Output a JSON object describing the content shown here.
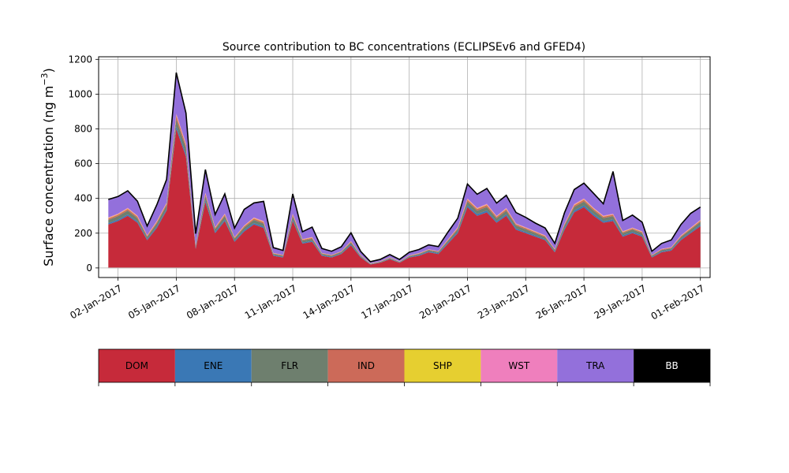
{
  "chart_data": {
    "type": "area",
    "stacked": true,
    "title": "Source contribution to BC concentrations (ECLIPSEv6 and GFED4)",
    "ylabel": "Surface concentration (ng m",
    "ylabel_exponent": "−3",
    "ylabel_suffix": ")",
    "xlabel": "",
    "ylim": [
      -55,
      1215
    ],
    "xlim": [
      "2017-01-01T00:00",
      "2017-02-01T12:00"
    ],
    "yticks": [
      0,
      200,
      400,
      600,
      800,
      1000,
      1200
    ],
    "xticks": [
      "02-Jan-2017",
      "05-Jan-2017",
      "08-Jan-2017",
      "11-Jan-2017",
      "14-Jan-2017",
      "17-Jan-2017",
      "20-Jan-2017",
      "23-Jan-2017",
      "26-Jan-2017",
      "29-Jan-2017",
      "01-Feb-2017"
    ],
    "xtick_dates": [
      "2017-01-02",
      "2017-01-05",
      "2017-01-08",
      "2017-01-11",
      "2017-01-14",
      "2017-01-17",
      "2017-01-20",
      "2017-01-23",
      "2017-01-26",
      "2017-01-29",
      "2017-02-01"
    ],
    "grid": true,
    "legend_position": "below",
    "x": [
      "2017-01-01T12:00",
      "2017-01-02T00:00",
      "2017-01-02T12:00",
      "2017-01-03T00:00",
      "2017-01-03T12:00",
      "2017-01-04T00:00",
      "2017-01-04T12:00",
      "2017-01-05T00:00",
      "2017-01-05T12:00",
      "2017-01-06T00:00",
      "2017-01-06T12:00",
      "2017-01-07T00:00",
      "2017-01-07T12:00",
      "2017-01-08T00:00",
      "2017-01-08T12:00",
      "2017-01-09T00:00",
      "2017-01-09T12:00",
      "2017-01-10T00:00",
      "2017-01-10T12:00",
      "2017-01-11T00:00",
      "2017-01-11T12:00",
      "2017-01-12T00:00",
      "2017-01-12T12:00",
      "2017-01-13T00:00",
      "2017-01-13T12:00",
      "2017-01-14T00:00",
      "2017-01-14T12:00",
      "2017-01-15T00:00",
      "2017-01-15T12:00",
      "2017-01-16T00:00",
      "2017-01-16T12:00",
      "2017-01-17T00:00",
      "2017-01-17T12:00",
      "2017-01-18T00:00",
      "2017-01-18T12:00",
      "2017-01-19T00:00",
      "2017-01-19T12:00",
      "2017-01-20T00:00",
      "2017-01-20T12:00",
      "2017-01-21T00:00",
      "2017-01-21T12:00",
      "2017-01-22T00:00",
      "2017-01-22T12:00",
      "2017-01-23T00:00",
      "2017-01-23T12:00",
      "2017-01-24T00:00",
      "2017-01-24T12:00",
      "2017-01-25T00:00",
      "2017-01-25T12:00",
      "2017-01-26T00:00",
      "2017-01-26T12:00",
      "2017-01-27T00:00",
      "2017-01-27T12:00",
      "2017-01-28T00:00",
      "2017-01-28T12:00",
      "2017-01-29T00:00",
      "2017-01-29T12:00",
      "2017-01-30T00:00",
      "2017-01-30T12:00",
      "2017-01-31T00:00",
      "2017-01-31T12:00",
      "2017-02-01T00:00"
    ],
    "series": [
      {
        "name": "DOM",
        "color": "#c62a3a",
        "values": [
          250,
          270,
          300,
          260,
          160,
          230,
          330,
          800,
          640,
          110,
          380,
          200,
          270,
          150,
          210,
          250,
          230,
          70,
          60,
          270,
          140,
          150,
          70,
          60,
          80,
          130,
          60,
          20,
          30,
          50,
          30,
          60,
          70,
          90,
          80,
          140,
          200,
          350,
          300,
          320,
          260,
          300,
          220,
          200,
          180,
          160,
          90,
          220,
          320,
          350,
          300,
          260,
          270,
          180,
          200,
          180,
          60,
          90,
          100,
          160,
          200,
          240
        ]
      },
      {
        "name": "ENE",
        "color": "#3a78b5",
        "values": [
          8,
          8,
          8,
          8,
          6,
          8,
          8,
          15,
          15,
          6,
          10,
          8,
          8,
          6,
          8,
          8,
          8,
          4,
          4,
          8,
          6,
          6,
          4,
          4,
          4,
          6,
          4,
          2,
          2,
          3,
          2,
          3,
          4,
          5,
          5,
          6,
          8,
          10,
          10,
          10,
          8,
          9,
          8,
          7,
          7,
          6,
          5,
          8,
          10,
          10,
          10,
          9,
          9,
          7,
          7,
          7,
          4,
          5,
          5,
          6,
          7,
          8
        ]
      },
      {
        "name": "FLR",
        "color": "#6e7f6e",
        "values": [
          18,
          20,
          22,
          18,
          12,
          18,
          22,
          40,
          35,
          10,
          25,
          15,
          20,
          12,
          15,
          18,
          17,
          7,
          6,
          20,
          11,
          12,
          7,
          6,
          7,
          10,
          5,
          2,
          3,
          4,
          3,
          5,
          6,
          7,
          7,
          10,
          14,
          22,
          20,
          21,
          18,
          20,
          16,
          15,
          13,
          12,
          8,
          16,
          21,
          22,
          20,
          18,
          19,
          13,
          14,
          13,
          6,
          8,
          8,
          12,
          14,
          16
        ]
      },
      {
        "name": "IND",
        "color": "#cc6a59",
        "values": [
          8,
          8,
          9,
          8,
          6,
          8,
          9,
          20,
          15,
          5,
          10,
          7,
          8,
          5,
          7,
          8,
          8,
          3,
          3,
          8,
          5,
          5,
          3,
          3,
          3,
          5,
          3,
          1,
          1,
          2,
          1,
          2,
          3,
          3,
          3,
          5,
          7,
          10,
          9,
          10,
          8,
          9,
          7,
          7,
          6,
          5,
          4,
          7,
          9,
          10,
          9,
          8,
          8,
          6,
          6,
          6,
          3,
          4,
          4,
          5,
          6,
          7
        ]
      },
      {
        "name": "SHP",
        "color": "#e6cf30",
        "values": [
          3,
          3,
          3,
          3,
          2,
          3,
          3,
          5,
          4,
          2,
          3,
          2,
          3,
          2,
          2,
          3,
          3,
          1,
          1,
          3,
          2,
          2,
          1,
          1,
          1,
          2,
          1,
          1,
          1,
          1,
          1,
          1,
          1,
          1,
          1,
          2,
          2,
          3,
          3,
          3,
          2,
          3,
          2,
          2,
          2,
          2,
          1,
          2,
          3,
          3,
          3,
          2,
          2,
          2,
          2,
          2,
          1,
          1,
          1,
          2,
          2,
          2
        ]
      },
      {
        "name": "WST",
        "color": "#ef7fbd",
        "values": [
          4,
          4,
          4,
          4,
          3,
          4,
          4,
          8,
          7,
          2,
          5,
          3,
          4,
          2,
          3,
          4,
          4,
          1,
          1,
          4,
          2,
          3,
          1,
          1,
          1,
          2,
          1,
          1,
          1,
          1,
          1,
          1,
          1,
          1,
          1,
          2,
          3,
          5,
          4,
          5,
          4,
          4,
          3,
          3,
          3,
          3,
          2,
          3,
          5,
          5,
          4,
          4,
          4,
          3,
          3,
          3,
          1,
          2,
          2,
          3,
          3,
          4
        ]
      },
      {
        "name": "TRA",
        "color": "#9370db",
        "values": [
          100,
          95,
          95,
          80,
          50,
          90,
          130,
          230,
          170,
          60,
          130,
          70,
          110,
          50,
          90,
          80,
          110,
          30,
          25,
          110,
          40,
          55,
          25,
          20,
          25,
          45,
          20,
          8,
          10,
          15,
          10,
          17,
          20,
          25,
          25,
          40,
          50,
          80,
          75,
          85,
          70,
          70,
          60,
          55,
          45,
          40,
          30,
          60,
          80,
          85,
          80,
          65,
          240,
          60,
          70,
          50,
          20,
          30,
          40,
          60,
          80,
          70
        ]
      },
      {
        "name": "BB",
        "color": "#000000",
        "values": [
          3,
          3,
          3,
          3,
          2,
          3,
          3,
          6,
          5,
          2,
          3,
          2,
          3,
          2,
          2,
          3,
          3,
          1,
          1,
          3,
          2,
          2,
          1,
          1,
          1,
          2,
          1,
          1,
          1,
          1,
          1,
          1,
          1,
          1,
          1,
          2,
          2,
          3,
          3,
          3,
          3,
          3,
          3,
          2,
          2,
          2,
          1,
          2,
          3,
          3,
          3,
          3,
          3,
          2,
          2,
          2,
          1,
          1,
          1,
          2,
          2,
          3
        ]
      }
    ]
  }
}
